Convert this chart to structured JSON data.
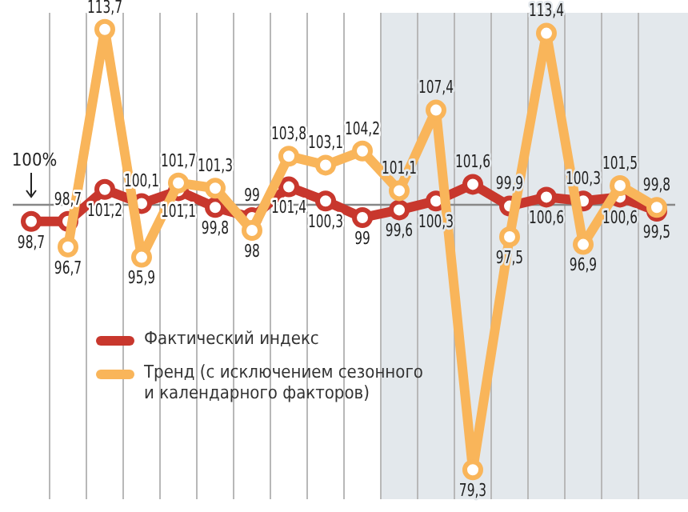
{
  "chart_data": {
    "type": "line",
    "categories": [
      null,
      null,
      null,
      null,
      null,
      null,
      null,
      null,
      null,
      null,
      null,
      null,
      null,
      null,
      null,
      null,
      null,
      null
    ],
    "ylim": [
      77,
      115
    ],
    "grid": "x",
    "legend": "bottom left",
    "marker": "circle",
    "line_style": "solid",
    "ref_lines": [
      {
        "axis": "y",
        "value": 100,
        "label": "100%",
        "color": "#888888"
      }
    ],
    "series": [
      {
        "name": "Фактический индекс",
        "color": "#c8372d",
        "values": [
          98.7,
          98.7,
          101.2,
          100.1,
          101.1,
          99.8,
          99,
          101.4,
          100.3,
          99,
          99.6,
          100.3,
          101.6,
          99.9,
          100.6,
          100.3,
          100.6,
          99.5
        ],
        "value_labels": [
          "98,7",
          "98,7",
          "101,2",
          "100,1",
          "101,1",
          "99,8",
          "99",
          "101,4",
          "100,3",
          "99",
          "99,6",
          "100,3",
          "101,6",
          "99,9",
          "100,6",
          "100,3",
          "100,6",
          "99,5"
        ]
      },
      {
        "name": "Тренд (с исключением сезонного и календарного факторов)",
        "color": "#f9b55a",
        "values": [
          null,
          96.7,
          113.7,
          95.9,
          101.7,
          101.3,
          98,
          103.8,
          103.1,
          104.2,
          101.1,
          107.4,
          79.3,
          97.5,
          113.4,
          96.9,
          101.5,
          99.8
        ],
        "value_labels": [
          null,
          "96,7",
          "113,7",
          "95,9",
          "101,7",
          "101,3",
          "98",
          "103,8",
          "103,1",
          "104,2",
          "101,1",
          "107,4",
          "79,3",
          "97,5",
          "113,4",
          "96,9",
          "101,5",
          "99,8"
        ]
      }
    ]
  }
}
